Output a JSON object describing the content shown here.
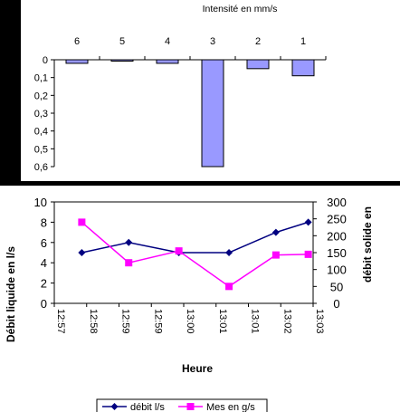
{
  "chart_data": [
    {
      "type": "bar",
      "title": "Intensité en mm/s",
      "categories": [
        "6",
        "5",
        "4",
        "3",
        "2",
        "1"
      ],
      "values": [
        0.02,
        0.005,
        0.02,
        0.6,
        0.05,
        0.09
      ],
      "ytick_labels": [
        "0",
        "0,1",
        "0,2",
        "0,3",
        "0,4",
        "0,5",
        "0,6"
      ],
      "ylim": [
        0,
        0.6
      ],
      "y_inverted": true,
      "colors": {
        "bar": "#9999ff",
        "bar_stroke": "#000000"
      }
    },
    {
      "type": "line",
      "xlabel": "Heure",
      "ylabel_left": "Débit liquide en l/s",
      "ylabel_right": "débit solide en",
      "xtick_labels": [
        "12:57",
        "12:58",
        "12:59",
        "12:59",
        "13:00",
        "13:01",
        "13:01",
        "13:02",
        "13:03"
      ],
      "ytick_left": [
        "0",
        "2",
        "4",
        "6",
        "8",
        "10"
      ],
      "ytick_right": [
        "0",
        "50",
        "100",
        "150",
        "200",
        "250",
        "300"
      ],
      "ylim_left": [
        0,
        10
      ],
      "ylim_right": [
        0,
        300
      ],
      "xlim": [
        0,
        8
      ],
      "series": [
        {
          "name": "débit l/s",
          "axis": "left",
          "color": "#000080",
          "marker": "diamond",
          "x": [
            0.85,
            2.3,
            3.85,
            5.4,
            6.85,
            7.85
          ],
          "values": [
            5,
            6,
            5,
            5,
            7,
            8
          ]
        },
        {
          "name": "Mes en g/s",
          "axis": "right",
          "color": "#ff00ff",
          "marker": "square",
          "x": [
            0.85,
            2.3,
            3.85,
            5.4,
            6.85,
            7.85
          ],
          "values": [
            240,
            120,
            155,
            50,
            143,
            145
          ]
        }
      ],
      "legend_position": "bottom"
    }
  ]
}
